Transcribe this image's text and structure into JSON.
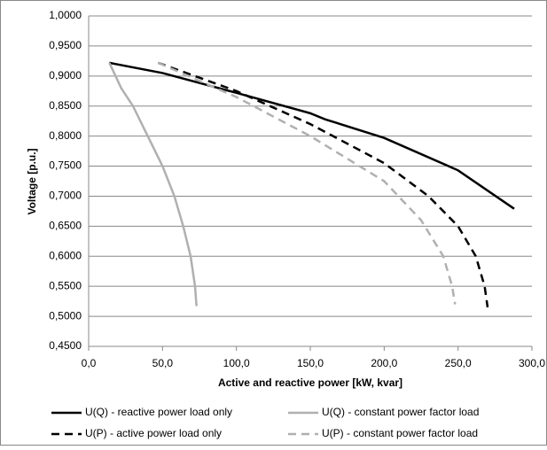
{
  "chart_data": {
    "type": "line",
    "x_label": "Active and reactive power [kW, kvar]",
    "y_label": "Voltage [p.u.]",
    "xlim": [
      0,
      300
    ],
    "ylim": [
      0.45,
      1.0
    ],
    "xticks": [
      {
        "value": 0,
        "label": "0,0"
      },
      {
        "value": 50,
        "label": "50,0"
      },
      {
        "value": 100,
        "label": "100,0"
      },
      {
        "value": 150,
        "label": "150,0"
      },
      {
        "value": 200,
        "label": "200,0"
      },
      {
        "value": 250,
        "label": "250,0"
      },
      {
        "value": 300,
        "label": "300,0"
      }
    ],
    "yticks": [
      {
        "value": 0.45,
        "label": "0,4500"
      },
      {
        "value": 0.5,
        "label": "0,5000"
      },
      {
        "value": 0.55,
        "label": "0,5500"
      },
      {
        "value": 0.6,
        "label": "0,6000"
      },
      {
        "value": 0.65,
        "label": "0,6500"
      },
      {
        "value": 0.7,
        "label": "0,7000"
      },
      {
        "value": 0.75,
        "label": "0,7500"
      },
      {
        "value": 0.8,
        "label": "0,8000"
      },
      {
        "value": 0.85,
        "label": "0,8500"
      },
      {
        "value": 0.9,
        "label": "0,9000"
      },
      {
        "value": 0.95,
        "label": "0,9500"
      },
      {
        "value": 1.0,
        "label": "1,0000"
      }
    ],
    "grid": true,
    "series": [
      {
        "name": "U(Q) - reactive power load only",
        "color": "#000000",
        "line_style": "solid",
        "x": [
          14,
          50,
          100,
          150,
          160,
          200,
          250,
          288
        ],
        "values": [
          0.922,
          0.905,
          0.872,
          0.838,
          0.828,
          0.797,
          0.743,
          0.679
        ]
      },
      {
        "name": "U(Q) - constant power factor load",
        "color": "#b0b0b0",
        "line_style": "solid",
        "x": [
          14,
          22,
          30,
          40,
          50,
          58,
          64,
          69,
          72,
          73
        ],
        "values": [
          0.922,
          0.88,
          0.85,
          0.8,
          0.75,
          0.7,
          0.65,
          0.6,
          0.55,
          0.517
        ]
      },
      {
        "name": "U(P) - active power load only",
        "color": "#000000",
        "line_style": "dashed",
        "x": [
          47,
          100,
          150,
          200,
          230,
          250,
          262,
          268,
          270
        ],
        "values": [
          0.922,
          0.875,
          0.82,
          0.755,
          0.7,
          0.65,
          0.6,
          0.55,
          0.515
        ]
      },
      {
        "name": "U(P) - constant power factor load",
        "color": "#b0b0b0",
        "line_style": "dashed",
        "x": [
          47,
          100,
          150,
          200,
          225,
          240,
          246,
          248
        ],
        "values": [
          0.922,
          0.865,
          0.8,
          0.725,
          0.66,
          0.6,
          0.55,
          0.52
        ]
      }
    ]
  }
}
